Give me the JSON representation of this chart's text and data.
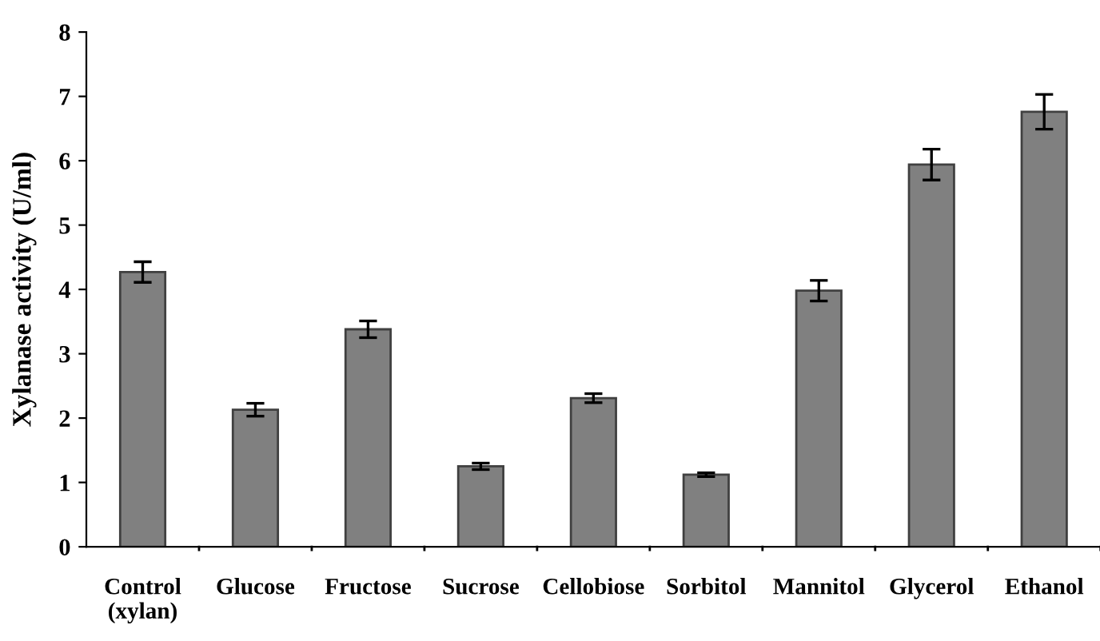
{
  "chart_data": {
    "type": "bar",
    "ylabel": "Xylanase activity (U/ml)",
    "categories": [
      "Control\n(xylan)",
      "Glucose",
      "Fructose",
      "Sucrose",
      "Cellobiose",
      "Sorbitol",
      "Mannitol",
      "Glycerol",
      "Ethanol"
    ],
    "values": [
      4.27,
      2.13,
      3.38,
      1.25,
      2.31,
      1.12,
      3.98,
      5.94,
      6.76
    ],
    "errors": [
      0.16,
      0.1,
      0.13,
      0.05,
      0.07,
      0.03,
      0.16,
      0.24,
      0.27
    ],
    "color": "#808080",
    "ylim": [
      0,
      8
    ],
    "yticks": [
      0,
      1,
      2,
      3,
      4,
      5,
      6,
      7,
      8
    ],
    "grid": false
  }
}
